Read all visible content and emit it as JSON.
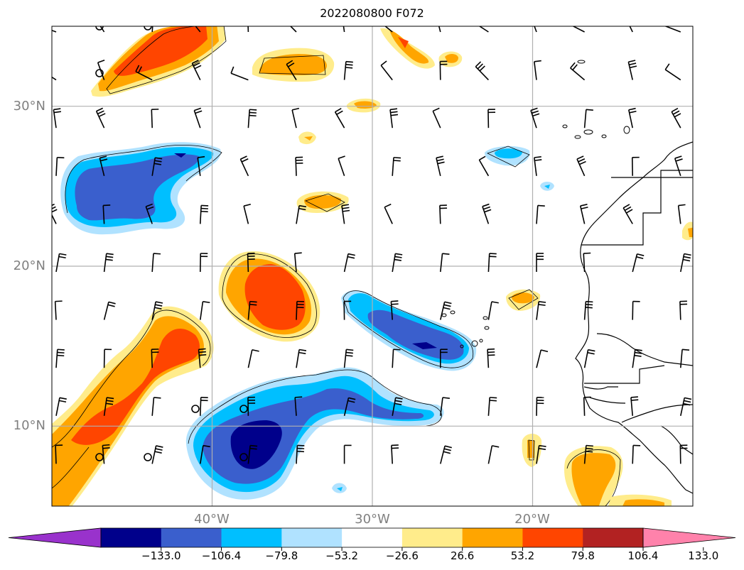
{
  "title": "2022080800 F072",
  "map": {
    "lon_range": [
      -50,
      -10
    ],
    "lat_range": [
      5,
      35
    ],
    "lat_ticks": [
      {
        "value": 30,
        "label": "30°N"
      },
      {
        "value": 20,
        "label": "20°N"
      },
      {
        "value": 10,
        "label": "10°N"
      }
    ],
    "lon_ticks": [
      {
        "value": -40,
        "label": "40°W"
      },
      {
        "value": -30,
        "label": "30°W"
      },
      {
        "value": -20,
        "label": "20°W"
      }
    ],
    "grid": true,
    "tick_label_color": "#808080"
  },
  "colorbar": {
    "labels": [
      "−133.0",
      "−106.4",
      "−79.8",
      "−53.2",
      "−26.6",
      "26.6",
      "53.2",
      "79.8",
      "106.4",
      "133.0"
    ],
    "colors": [
      "#9932cc",
      "#00008b",
      "#3a5fcd",
      "#00bfff",
      "#b0e2ff",
      "#ffffff",
      "#ffec8b",
      "#ffa500",
      "#ff4500",
      "#b22222",
      "#ff82ab"
    ],
    "extend": "both"
  },
  "fields": {
    "positive": [
      {
        "name": "nw-band-upper",
        "level": 3,
        "lon": -44.5,
        "lat": 33.5
      },
      {
        "name": "central-high",
        "level": 3,
        "lon": -36.5,
        "lat": 18.5
      },
      {
        "name": "sw-band",
        "level": 3,
        "lon": -46.0,
        "lat": 12.5
      },
      {
        "name": "se-africa",
        "level": 2,
        "lon": -14.5,
        "lat": 7.0
      }
    ],
    "negative": [
      {
        "name": "nw-low",
        "level": 2,
        "lon": -45.5,
        "lat": 25.5
      },
      {
        "name": "central-low",
        "level": 2,
        "lon": -27.0,
        "lat": 15.5
      },
      {
        "name": "south-low",
        "level": 1,
        "lon": -37.5,
        "lat": 9.0
      }
    ]
  }
}
